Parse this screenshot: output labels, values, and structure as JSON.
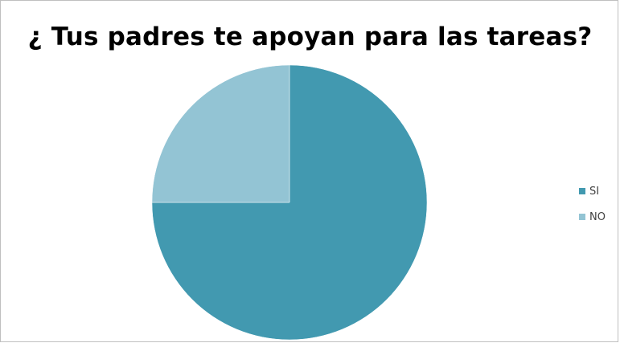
{
  "chart_data": {
    "type": "pie",
    "title": "¿ Tus padres te apoyan para las tareas?",
    "categories": [
      "SI",
      "NO"
    ],
    "values": [
      75,
      25
    ],
    "colors": [
      "#4299B0",
      "#93C4D4"
    ],
    "legend_position": "right",
    "start_angle_clock": "12 o'clock",
    "direction": "clockwise"
  }
}
